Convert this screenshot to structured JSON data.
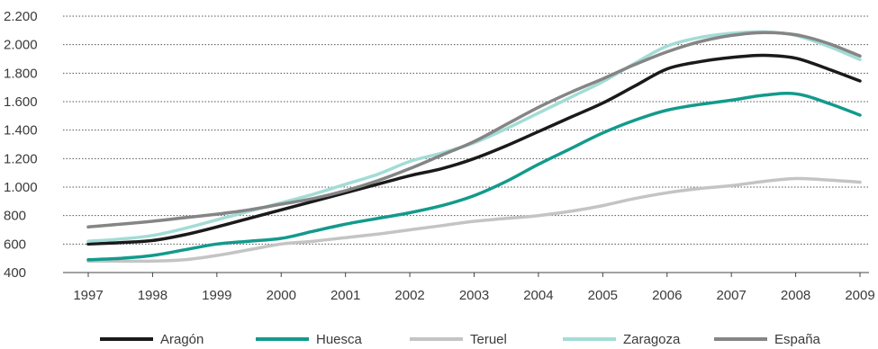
{
  "chart_data": {
    "type": "line",
    "title": "",
    "xlabel": "",
    "ylabel": "",
    "ylim": [
      400,
      2200
    ],
    "xlim": [
      1997,
      2009
    ],
    "y_ticks": [
      400,
      600,
      800,
      1000,
      1200,
      1400,
      1600,
      1800,
      2000,
      2200
    ],
    "y_tick_labels": [
      "400",
      "600",
      "800",
      "1.000",
      "1.200",
      "1.400",
      "1.600",
      "1.800",
      "2.000",
      "2.200"
    ],
    "x_ticks": [
      1997,
      1998,
      1999,
      2000,
      2001,
      2002,
      2003,
      2004,
      2005,
      2006,
      2007,
      2008,
      2009
    ],
    "x_tick_labels": [
      "1997",
      "1998",
      "1999",
      "2000",
      "2001",
      "2002",
      "2003",
      "2004",
      "2005",
      "2006",
      "2007",
      "2008",
      "2009"
    ],
    "grid": "horizontal dotted",
    "legend_position": "bottom",
    "series": [
      {
        "name": "Aragón",
        "color": "#1a1a1a",
        "points": [
          [
            1997,
            600
          ],
          [
            1997.5,
            610
          ],
          [
            1998,
            625
          ],
          [
            1998.5,
            665
          ],
          [
            1999,
            720
          ],
          [
            1999.5,
            780
          ],
          [
            2000,
            840
          ],
          [
            2000.5,
            900
          ],
          [
            2001,
            960
          ],
          [
            2001.5,
            1020
          ],
          [
            2002,
            1080
          ],
          [
            2002.5,
            1130
          ],
          [
            2003,
            1200
          ],
          [
            2003.5,
            1290
          ],
          [
            2004,
            1390
          ],
          [
            2004.5,
            1490
          ],
          [
            2005,
            1590
          ],
          [
            2005.5,
            1710
          ],
          [
            2006,
            1830
          ],
          [
            2006.5,
            1880
          ],
          [
            2007,
            1910
          ],
          [
            2007.5,
            1925
          ],
          [
            2008,
            1905
          ],
          [
            2008.5,
            1830
          ],
          [
            2009,
            1745
          ]
        ]
      },
      {
        "name": "Huesca",
        "color": "#139a8c",
        "points": [
          [
            1997,
            490
          ],
          [
            1997.5,
            500
          ],
          [
            1998,
            520
          ],
          [
            1998.5,
            560
          ],
          [
            1999,
            600
          ],
          [
            1999.5,
            620
          ],
          [
            2000,
            640
          ],
          [
            2000.5,
            690
          ],
          [
            2001,
            740
          ],
          [
            2001.5,
            780
          ],
          [
            2002,
            820
          ],
          [
            2002.5,
            870
          ],
          [
            2003,
            940
          ],
          [
            2003.5,
            1040
          ],
          [
            2004,
            1160
          ],
          [
            2004.5,
            1270
          ],
          [
            2005,
            1380
          ],
          [
            2005.5,
            1470
          ],
          [
            2006,
            1540
          ],
          [
            2006.5,
            1580
          ],
          [
            2007,
            1610
          ],
          [
            2007.5,
            1645
          ],
          [
            2008,
            1655
          ],
          [
            2008.5,
            1590
          ],
          [
            2009,
            1505
          ]
        ]
      },
      {
        "name": "Teruel",
        "color": "#c4c4c4",
        "points": [
          [
            1997,
            480
          ],
          [
            1997.5,
            480
          ],
          [
            1998,
            480
          ],
          [
            1998.5,
            490
          ],
          [
            1999,
            520
          ],
          [
            1999.5,
            560
          ],
          [
            2000,
            600
          ],
          [
            2000.5,
            620
          ],
          [
            2001,
            645
          ],
          [
            2001.5,
            670
          ],
          [
            2002,
            700
          ],
          [
            2002.5,
            730
          ],
          [
            2003,
            760
          ],
          [
            2003.5,
            780
          ],
          [
            2004,
            800
          ],
          [
            2004.5,
            830
          ],
          [
            2005,
            870
          ],
          [
            2005.5,
            920
          ],
          [
            2006,
            960
          ],
          [
            2006.5,
            990
          ],
          [
            2007,
            1010
          ],
          [
            2007.5,
            1040
          ],
          [
            2008,
            1060
          ],
          [
            2008.5,
            1050
          ],
          [
            2009,
            1035
          ]
        ]
      },
      {
        "name": "Zaragoza",
        "color": "#a3dcd6",
        "points": [
          [
            1997,
            620
          ],
          [
            1997.5,
            635
          ],
          [
            1998,
            660
          ],
          [
            1998.5,
            710
          ],
          [
            1999,
            770
          ],
          [
            1999.5,
            830
          ],
          [
            2000,
            890
          ],
          [
            2000.5,
            950
          ],
          [
            2001,
            1020
          ],
          [
            2001.5,
            1090
          ],
          [
            2002,
            1180
          ],
          [
            2002.5,
            1240
          ],
          [
            2003,
            1310
          ],
          [
            2003.5,
            1410
          ],
          [
            2004,
            1520
          ],
          [
            2004.5,
            1630
          ],
          [
            2005,
            1740
          ],
          [
            2005.5,
            1870
          ],
          [
            2006,
            1990
          ],
          [
            2006.5,
            2050
          ],
          [
            2007,
            2080
          ],
          [
            2007.5,
            2090
          ],
          [
            2008,
            2065
          ],
          [
            2008.5,
            1990
          ],
          [
            2009,
            1895
          ]
        ]
      },
      {
        "name": "España",
        "color": "#858585",
        "points": [
          [
            1997,
            720
          ],
          [
            1997.5,
            740
          ],
          [
            1998,
            760
          ],
          [
            1998.5,
            785
          ],
          [
            1999,
            810
          ],
          [
            1999.5,
            840
          ],
          [
            2000,
            880
          ],
          [
            2000.5,
            920
          ],
          [
            2001,
            975
          ],
          [
            2001.5,
            1045
          ],
          [
            2002,
            1130
          ],
          [
            2002.5,
            1225
          ],
          [
            2003,
            1320
          ],
          [
            2003.5,
            1440
          ],
          [
            2004,
            1560
          ],
          [
            2004.5,
            1665
          ],
          [
            2005,
            1760
          ],
          [
            2005.5,
            1860
          ],
          [
            2006,
            1950
          ],
          [
            2006.5,
            2020
          ],
          [
            2007,
            2065
          ],
          [
            2007.5,
            2085
          ],
          [
            2008,
            2070
          ],
          [
            2008.5,
            2010
          ],
          [
            2009,
            1920
          ]
        ]
      }
    ]
  }
}
